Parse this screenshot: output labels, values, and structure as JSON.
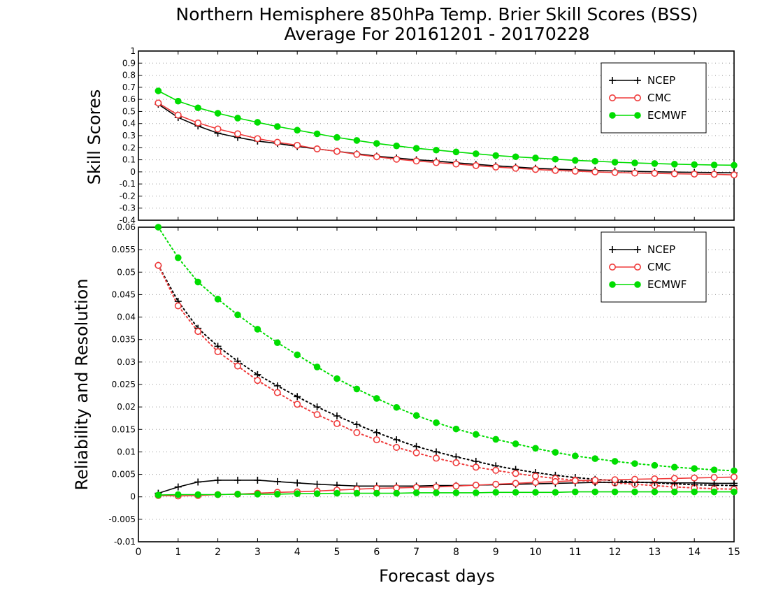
{
  "title_line1": "Northern Hemisphere 850hPa Temp. Brier Skill Scores (BSS)",
  "title_line2": "Average For 20161201 - 20170228",
  "xlabel": "Forecast days",
  "colors": {
    "NCEP": "#000000",
    "CMC": "#ef3b3b",
    "ECMWF": "#00dd00",
    "grid": "#9a9a9a"
  },
  "chart_data": [
    {
      "type": "line",
      "panel": "top",
      "ylabel": "Skill Scores",
      "xlim": [
        0,
        15
      ],
      "ylim": [
        -0.4,
        1
      ],
      "xticks": [
        0,
        1,
        2,
        3,
        4,
        5,
        6,
        7,
        8,
        9,
        10,
        11,
        12,
        13,
        14,
        15
      ],
      "yticks": [
        -0.4,
        -0.3,
        -0.2,
        -0.1,
        0,
        0.1,
        0.2,
        0.3,
        0.4,
        0.5,
        0.6,
        0.7,
        0.8,
        0.9,
        1
      ],
      "ytick_labels": [
        "-0.4",
        "-0.3",
        "-0.2",
        "-0.1",
        "0",
        "0.1",
        "0.2",
        "0.3",
        "0.4",
        "0.5",
        "0.6",
        "0.7",
        "0.8",
        "0.9",
        "1"
      ],
      "grid": true,
      "legend_position": "top-right",
      "x": [
        0.5,
        1,
        1.5,
        2,
        2.5,
        3,
        3.5,
        4,
        4.5,
        5,
        5.5,
        6,
        6.5,
        7,
        7.5,
        8,
        8.5,
        9,
        9.5,
        10,
        10.5,
        11,
        11.5,
        12,
        12.5,
        13,
        13.5,
        14,
        14.5,
        15
      ],
      "series": [
        {
          "name": "NCEP",
          "style": "solid",
          "marker": "plus",
          "values": [
            0.56,
            0.45,
            0.38,
            0.32,
            0.285,
            0.255,
            0.235,
            0.21,
            0.19,
            0.17,
            0.15,
            0.13,
            0.115,
            0.1,
            0.09,
            0.075,
            0.062,
            0.05,
            0.04,
            0.03,
            0.023,
            0.017,
            0.012,
            0.008,
            0.004,
            0.001,
            -0.002,
            -0.004,
            -0.006,
            -0.008
          ]
        },
        {
          "name": "CMC",
          "style": "solid",
          "marker": "open-circle",
          "values": [
            0.57,
            0.47,
            0.405,
            0.355,
            0.315,
            0.275,
            0.245,
            0.22,
            0.19,
            0.17,
            0.145,
            0.125,
            0.105,
            0.09,
            0.077,
            0.065,
            0.052,
            0.04,
            0.03,
            0.02,
            0.012,
            0.006,
            0.0,
            -0.005,
            -0.01,
            -0.012,
            -0.016,
            -0.018,
            -0.02,
            -0.025
          ]
        },
        {
          "name": "ECMWF",
          "style": "solid",
          "marker": "filled-circle",
          "values": [
            0.67,
            0.585,
            0.53,
            0.485,
            0.445,
            0.41,
            0.375,
            0.345,
            0.315,
            0.285,
            0.26,
            0.235,
            0.215,
            0.195,
            0.18,
            0.165,
            0.15,
            0.135,
            0.125,
            0.115,
            0.105,
            0.095,
            0.088,
            0.08,
            0.074,
            0.069,
            0.064,
            0.06,
            0.057,
            0.055
          ]
        }
      ]
    },
    {
      "type": "line",
      "panel": "bottom",
      "ylabel": "Reliability and Resolution",
      "xlim": [
        0,
        15
      ],
      "ylim": [
        -0.01,
        0.06
      ],
      "xticks": [
        0,
        1,
        2,
        3,
        4,
        5,
        6,
        7,
        8,
        9,
        10,
        11,
        12,
        13,
        14,
        15
      ],
      "xtick_labels": [
        "0",
        "1",
        "2",
        "3",
        "4",
        "5",
        "6",
        "7",
        "8",
        "9",
        "10",
        "11",
        "12",
        "13",
        "14",
        "15"
      ],
      "yticks": [
        -0.01,
        -0.005,
        0,
        0.005,
        0.01,
        0.015,
        0.02,
        0.025,
        0.03,
        0.035,
        0.04,
        0.045,
        0.05,
        0.055,
        0.06
      ],
      "ytick_labels": [
        "-0.01",
        "-0.005",
        "0",
        "0.005",
        "0.01",
        "0.015",
        "0.02",
        "0.025",
        "0.03",
        "0.035",
        "0.04",
        "0.045",
        "0.05",
        "0.055",
        "0.06"
      ],
      "grid": true,
      "legend_position": "top-right",
      "x": [
        0.5,
        1,
        1.5,
        2,
        2.5,
        3,
        3.5,
        4,
        4.5,
        5,
        5.5,
        6,
        6.5,
        7,
        7.5,
        8,
        8.5,
        9,
        9.5,
        10,
        10.5,
        11,
        11.5,
        12,
        12.5,
        13,
        13.5,
        14,
        14.5,
        15
      ],
      "series": [
        {
          "name": "NCEP",
          "style": "dotted",
          "marker": "plus",
          "values": [
            0.0515,
            0.0435,
            0.0375,
            0.0335,
            0.0302,
            0.0272,
            0.0247,
            0.0223,
            0.02,
            0.018,
            0.0161,
            0.0143,
            0.0127,
            0.0112,
            0.01,
            0.0089,
            0.0079,
            0.0069,
            0.0061,
            0.0054,
            0.0048,
            0.0043,
            0.0039,
            0.0036,
            0.0033,
            0.0031,
            0.0029,
            0.0027,
            0.0026,
            0.0025
          ]
        },
        {
          "name": "CMC",
          "style": "dotted",
          "marker": "open-circle",
          "values": [
            0.0515,
            0.0425,
            0.0368,
            0.0323,
            0.0291,
            0.0259,
            0.0232,
            0.0206,
            0.0183,
            0.0163,
            0.0143,
            0.0127,
            0.011,
            0.0098,
            0.0086,
            0.0076,
            0.0066,
            0.0059,
            0.0052,
            0.0046,
            0.0041,
            0.0037,
            0.0034,
            0.0031,
            0.0028,
            0.0025,
            0.0022,
            0.002,
            0.0018,
            0.0017
          ]
        },
        {
          "name": "ECMWF",
          "style": "dotted",
          "marker": "filled-circle",
          "values": [
            0.06,
            0.0532,
            0.0478,
            0.044,
            0.0405,
            0.0373,
            0.0343,
            0.0316,
            0.0289,
            0.0263,
            0.024,
            0.0219,
            0.0199,
            0.0181,
            0.0165,
            0.0151,
            0.0139,
            0.0128,
            0.0118,
            0.0108,
            0.0099,
            0.0091,
            0.0085,
            0.0079,
            0.0074,
            0.007,
            0.0066,
            0.0063,
            0.006,
            0.0058
          ]
        },
        {
          "name": "NCEP",
          "style": "solid",
          "marker": "plus",
          "values": [
            0.0008,
            0.0022,
            0.0033,
            0.0037,
            0.0037,
            0.0037,
            0.0034,
            0.0031,
            0.0028,
            0.0026,
            0.0024,
            0.0024,
            0.0024,
            0.0024,
            0.0025,
            0.0025,
            0.0026,
            0.0027,
            0.0028,
            0.0029,
            0.003,
            0.0031,
            0.0032,
            0.0032,
            0.0032,
            0.0032,
            0.0031,
            0.0031,
            0.003,
            0.003
          ]
        },
        {
          "name": "CMC",
          "style": "solid",
          "marker": "open-circle",
          "values": [
            0.0003,
            0.0002,
            0.0003,
            0.0005,
            0.0006,
            0.0008,
            0.001,
            0.0011,
            0.0013,
            0.0015,
            0.0017,
            0.0019,
            0.002,
            0.0021,
            0.0022,
            0.0024,
            0.0026,
            0.0028,
            0.003,
            0.0032,
            0.0034,
            0.0036,
            0.0037,
            0.0038,
            0.0039,
            0.004,
            0.0041,
            0.0042,
            0.0043,
            0.0044
          ]
        },
        {
          "name": "ECMWF",
          "style": "solid",
          "marker": "filled-circle",
          "values": [
            0.0004,
            0.0005,
            0.0005,
            0.0005,
            0.0006,
            0.0006,
            0.0006,
            0.0007,
            0.0007,
            0.0008,
            0.0008,
            0.0008,
            0.0008,
            0.0009,
            0.0009,
            0.0009,
            0.0009,
            0.001,
            0.001,
            0.001,
            0.001,
            0.0011,
            0.0011,
            0.0011,
            0.0011,
            0.0011,
            0.0011,
            0.0011,
            0.0011,
            0.0011
          ]
        }
      ]
    }
  ]
}
